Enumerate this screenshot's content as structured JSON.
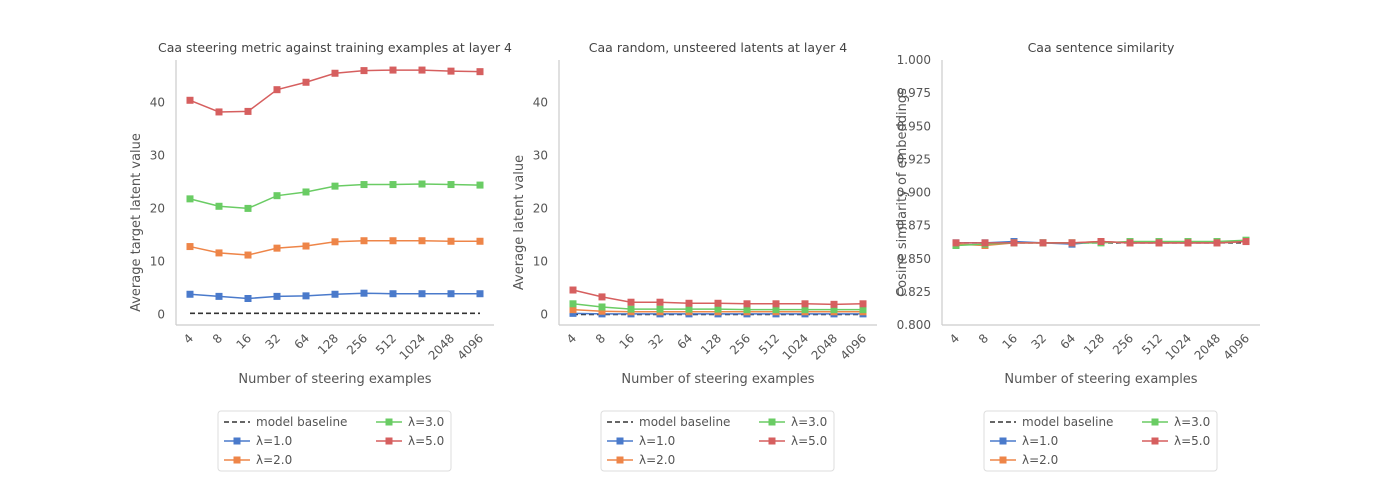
{
  "chart_data": [
    {
      "type": "line",
      "title": "Caa steering metric against training examples at layer 4",
      "xlabel": "Number of steering examples",
      "ylabel": "Average target latent value",
      "categories": [
        "4",
        "8",
        "16",
        "32",
        "64",
        "128",
        "256",
        "512",
        "1024",
        "2048",
        "4096"
      ],
      "ylim": [
        -2,
        48
      ],
      "yticks": [
        0,
        10,
        20,
        30,
        40
      ],
      "grid": false,
      "legend_position": "below",
      "series": [
        {
          "name": "model baseline",
          "style": "dashed",
          "marker": "none",
          "color": "#333333",
          "values": [
            0.2,
            0.2,
            0.2,
            0.2,
            0.2,
            0.2,
            0.2,
            0.2,
            0.2,
            0.2,
            0.2
          ]
        },
        {
          "name": "λ=1.0",
          "color": "#4a7acb",
          "values": [
            3.8,
            3.4,
            3.0,
            3.4,
            3.5,
            3.8,
            4.0,
            3.9,
            3.9,
            3.9,
            3.9
          ]
        },
        {
          "name": "λ=2.0",
          "color": "#ee8548",
          "values": [
            12.8,
            11.6,
            11.2,
            12.5,
            12.9,
            13.7,
            13.9,
            13.9,
            13.9,
            13.8,
            13.8
          ]
        },
        {
          "name": "λ=3.0",
          "color": "#6acc64",
          "values": [
            21.8,
            20.4,
            20.0,
            22.4,
            23.1,
            24.2,
            24.5,
            24.5,
            24.6,
            24.5,
            24.4
          ]
        },
        {
          "name": "λ=5.0",
          "color": "#d65f5f",
          "values": [
            40.4,
            38.2,
            38.3,
            42.4,
            43.8,
            45.5,
            46.0,
            46.1,
            46.1,
            45.9,
            45.8
          ]
        }
      ]
    },
    {
      "type": "line",
      "title": "Caa random, unsteered latents at layer 4",
      "xlabel": "Number of steering examples",
      "ylabel": "Average latent value",
      "categories": [
        "4",
        "8",
        "16",
        "32",
        "64",
        "128",
        "256",
        "512",
        "1024",
        "2048",
        "4096"
      ],
      "ylim": [
        -2,
        48
      ],
      "yticks": [
        0,
        10,
        20,
        30,
        40
      ],
      "grid": false,
      "legend_position": "below",
      "series": [
        {
          "name": "model baseline",
          "style": "dashed",
          "marker": "none",
          "color": "#333333",
          "values": [
            0.0,
            0.0,
            0.0,
            0.0,
            0.0,
            0.0,
            0.0,
            0.0,
            0.0,
            0.0,
            0.0
          ]
        },
        {
          "name": "λ=1.0",
          "color": "#4a7acb",
          "values": [
            0.2,
            0.1,
            0.1,
            0.1,
            0.1,
            0.1,
            0.1,
            0.1,
            0.1,
            0.1,
            0.1
          ]
        },
        {
          "name": "λ=2.0",
          "color": "#ee8548",
          "values": [
            0.9,
            0.6,
            0.5,
            0.5,
            0.5,
            0.5,
            0.5,
            0.5,
            0.5,
            0.5,
            0.5
          ]
        },
        {
          "name": "λ=3.0",
          "color": "#6acc64",
          "values": [
            2.0,
            1.4,
            1.0,
            1.0,
            1.0,
            1.0,
            0.9,
            0.9,
            0.9,
            0.9,
            0.9
          ]
        },
        {
          "name": "λ=5.0",
          "color": "#d65f5f",
          "values": [
            4.6,
            3.3,
            2.3,
            2.3,
            2.1,
            2.1,
            2.0,
            2.0,
            2.0,
            1.9,
            2.0
          ]
        }
      ]
    },
    {
      "type": "line",
      "title": "Caa sentence similarity",
      "xlabel": "Number of steering examples",
      "ylabel": "Cosine similarity of embeddings",
      "categories": [
        "4",
        "8",
        "16",
        "32",
        "64",
        "128",
        "256",
        "512",
        "1024",
        "2048",
        "4096"
      ],
      "ylim": [
        0.8,
        1.0
      ],
      "yticks": [
        0.8,
        0.825,
        0.85,
        0.875,
        0.9,
        0.925,
        0.95,
        0.975,
        1.0
      ],
      "ytick_labels": [
        "0.800",
        "0.825",
        "0.850",
        "0.875",
        "0.900",
        "0.925",
        "0.950",
        "0.975",
        "1.000"
      ],
      "grid": false,
      "legend_position": "below",
      "series": [
        {
          "name": "model baseline",
          "style": "dashed",
          "marker": "none",
          "color": "#333333",
          "values": [
            0.862,
            0.862,
            0.862,
            0.862,
            0.862,
            0.862,
            0.862,
            0.862,
            0.862,
            0.862,
            0.862
          ]
        },
        {
          "name": "λ=1.0",
          "color": "#4a7acb",
          "values": [
            0.862,
            0.862,
            0.863,
            0.862,
            0.861,
            0.863,
            0.862,
            0.862,
            0.862,
            0.862,
            0.863
          ]
        },
        {
          "name": "λ=2.0",
          "color": "#ee8548",
          "values": [
            0.861,
            0.86,
            0.862,
            0.862,
            0.862,
            0.863,
            0.862,
            0.862,
            0.862,
            0.862,
            0.863
          ]
        },
        {
          "name": "λ=3.0",
          "color": "#6acc64",
          "values": [
            0.86,
            0.861,
            0.862,
            0.862,
            0.862,
            0.862,
            0.863,
            0.863,
            0.863,
            0.863,
            0.864
          ]
        },
        {
          "name": "λ=5.0",
          "color": "#d65f5f",
          "values": [
            0.862,
            0.862,
            0.862,
            0.862,
            0.862,
            0.863,
            0.862,
            0.862,
            0.862,
            0.862,
            0.863
          ]
        }
      ]
    }
  ]
}
